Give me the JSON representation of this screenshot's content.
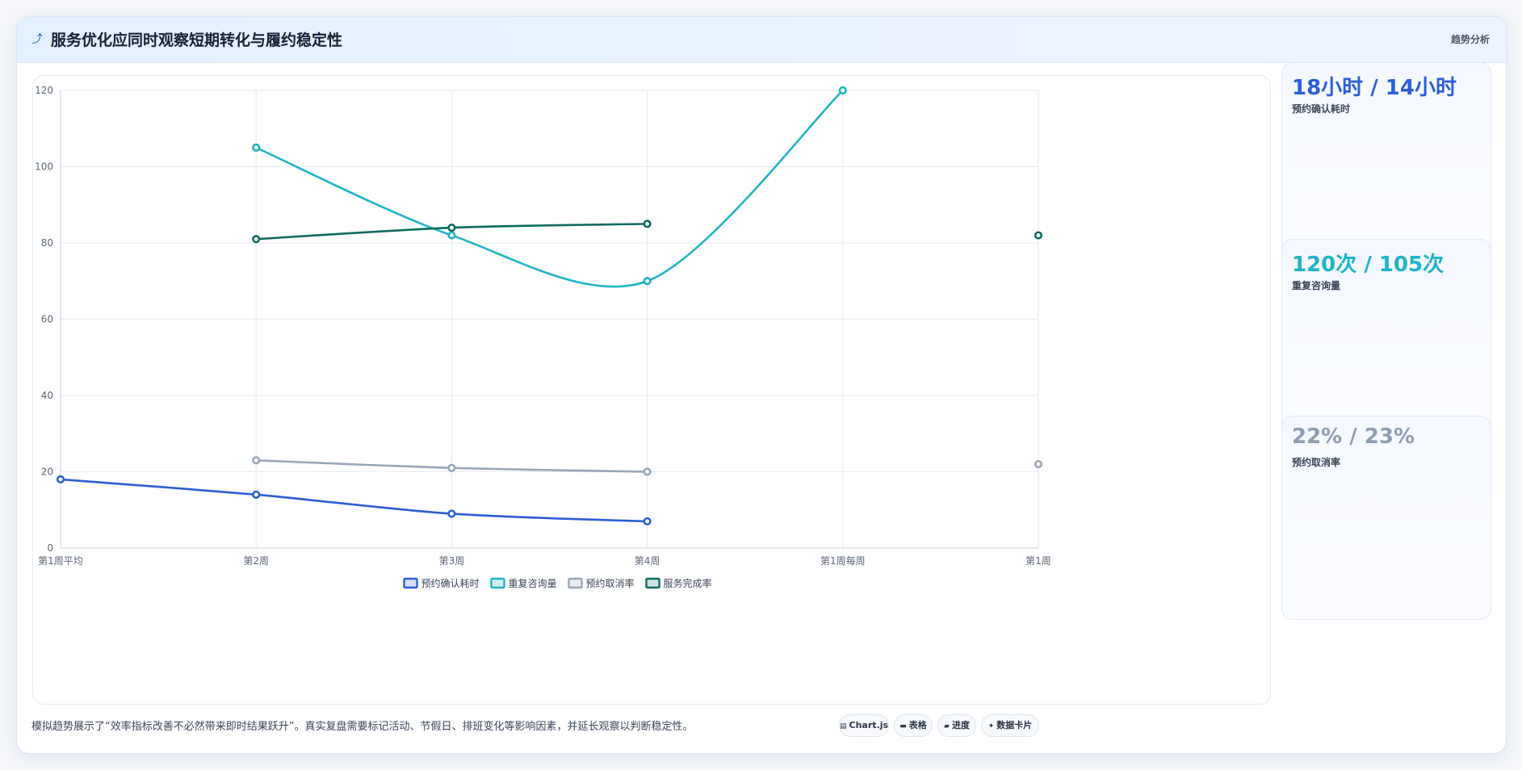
{
  "header": {
    "title_icon": "trend-icon",
    "title": "服务优化应同时观察短期转化与履约稳定性",
    "right_label": "趋势分析"
  },
  "chart_data": {
    "type": "line",
    "categories": [
      "第1周平均",
      "第2周",
      "第3周",
      "第4周",
      "第1周每周",
      "第1周"
    ],
    "ylim": [
      0,
      120
    ],
    "yticks": [
      0,
      20,
      40,
      60,
      80,
      100,
      120
    ],
    "grid": true,
    "legend_position": "bottom",
    "series": [
      {
        "name": "预约确认耗时",
        "color": "#2b5fd6",
        "values": [
          18,
          14,
          9,
          7,
          null,
          null
        ]
      },
      {
        "name": "重复咨询量",
        "color": "#1fb3c8",
        "values": [
          null,
          105,
          82,
          70,
          120,
          null
        ]
      },
      {
        "name": "预约取消率",
        "color": "#9aa6b8",
        "values": [
          null,
          23,
          21,
          20,
          null,
          22
        ]
      },
      {
        "name": "服务完成率",
        "color": "#0e6b62",
        "values": [
          null,
          81,
          84,
          85,
          null,
          82
        ]
      }
    ]
  },
  "side_cards": [
    {
      "value": "18小时 / 14小时",
      "label": "预约确认耗时",
      "color": "#2b5fd6"
    },
    {
      "value": "120次 / 105次",
      "label": "重复咨询量",
      "color": "#1fb3c8"
    },
    {
      "value": "22% / 23%",
      "label": "预约取消率",
      "color": "#8f9cb0"
    }
  ],
  "footer": {
    "text": "模拟趋势展示了“效率指标改善不必然带来即时结果跃升”。真实复盘需要标记活动、节假日、排班变化等影响因素，并延长观察以判断稳定性。",
    "buttons": [
      {
        "icon": "chart-icon",
        "label": "Chart.js"
      },
      {
        "icon": "table-icon",
        "label": "表格"
      },
      {
        "icon": "progress-icon",
        "label": "进度"
      },
      {
        "icon": "card-icon",
        "label": "数据卡片"
      }
    ]
  }
}
